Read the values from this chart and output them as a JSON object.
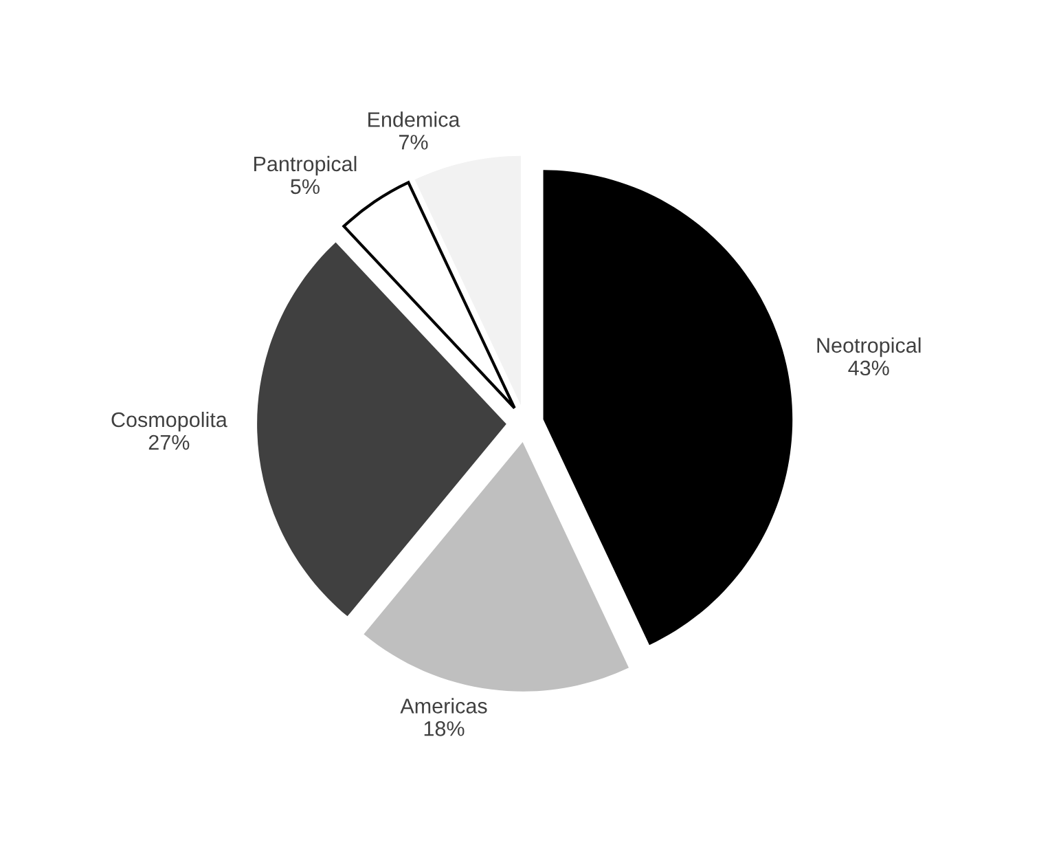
{
  "chart_data": {
    "type": "pie",
    "categories": [
      "Neotropical",
      "Americas",
      "Cosmopolita",
      "Pantropical",
      "Endemica"
    ],
    "values": [
      43,
      18,
      27,
      5,
      7
    ],
    "value_labels": [
      "43%",
      "18%",
      "27%",
      "5%",
      "7%"
    ],
    "colors": [
      "#000000",
      "#bfbfbf",
      "#404040",
      "#ffffff",
      "#f2f2f2"
    ]
  }
}
